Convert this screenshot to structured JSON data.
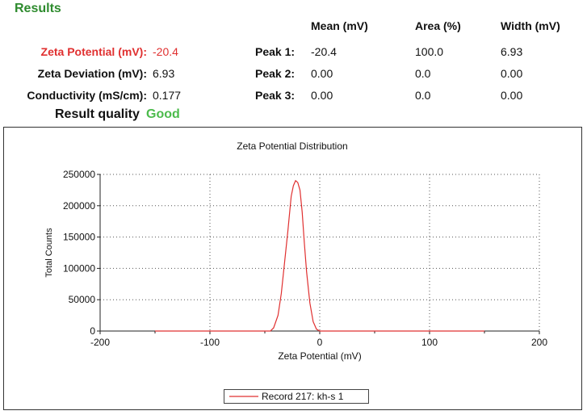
{
  "results": {
    "heading": "Results",
    "rows": [
      {
        "label": "Zeta Potential (mV):",
        "value": "-20.4",
        "color": "#e03030"
      },
      {
        "label": "Zeta Deviation (mV):",
        "value": "6.93"
      },
      {
        "label": "Conductivity (mS/cm):",
        "value": "0.177"
      }
    ],
    "quality_label": "Result quality",
    "quality_value": "Good",
    "quality_color": "#4cbb4c"
  },
  "peaks": {
    "columns": [
      "Mean (mV)",
      "Area (%)",
      "Width (mV)"
    ],
    "rows": [
      {
        "label": "Peak 1:",
        "mean": "-20.4",
        "area": "100.0",
        "width": "6.93"
      },
      {
        "label": "Peak 2:",
        "mean": "0.00",
        "area": "0.0",
        "width": "0.00"
      },
      {
        "label": "Peak 3:",
        "mean": "0.00",
        "area": "0.0",
        "width": "0.00"
      }
    ]
  },
  "chart_data": {
    "type": "line",
    "title": "Zeta Potential Distribution",
    "xlabel": "Zeta Potential (mV)",
    "ylabel": "Total Counts",
    "xlim": [
      -200,
      200
    ],
    "ylim": [
      0,
      250000
    ],
    "xticks": [
      -200,
      -100,
      0,
      100,
      200
    ],
    "yticks": [
      0,
      50000,
      100000,
      150000,
      200000,
      250000
    ],
    "grid": true,
    "legend_position": "bottom-center",
    "series": [
      {
        "name": "Record 217: kh-s 1",
        "color": "#e03030",
        "x": [
          -150,
          -45,
          -42,
          -38,
          -35,
          -32,
          -29,
          -26,
          -24,
          -22,
          -20,
          -18,
          -16,
          -14,
          -12,
          -9,
          -6,
          -3,
          0,
          150
        ],
        "y": [
          0,
          0,
          5000,
          25000,
          60000,
          110000,
          160000,
          215000,
          232000,
          240000,
          237000,
          225000,
          190000,
          140000,
          95000,
          45000,
          15000,
          3000,
          0,
          0
        ]
      }
    ]
  }
}
